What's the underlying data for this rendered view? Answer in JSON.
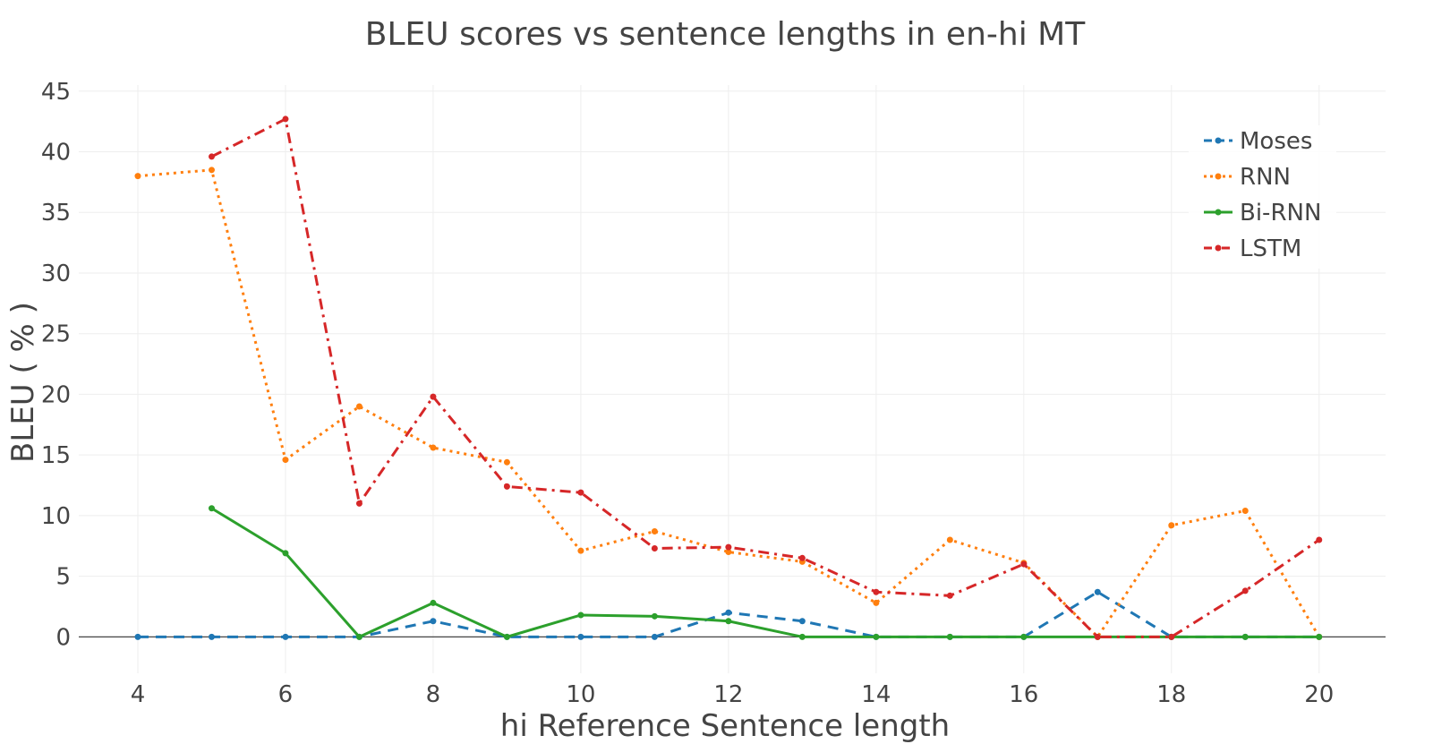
{
  "chart_data": {
    "type": "line",
    "title": "BLEU scores vs sentence lengths in en-hi MT",
    "xlabel": "hi Reference Sentence length",
    "ylabel": "BLEU ( % )",
    "xlim": [
      3.2,
      20.9
    ],
    "ylim": [
      -3,
      45.5
    ],
    "xticks": [
      4,
      6,
      8,
      10,
      12,
      14,
      16,
      18,
      20
    ],
    "yticks": [
      0,
      5,
      10,
      15,
      20,
      25,
      30,
      35,
      40,
      45
    ],
    "grid": true,
    "legend_position": "top-right",
    "series": [
      {
        "name": "Moses",
        "color": "#1f77b4",
        "dash": "dash",
        "points": [
          [
            4,
            0
          ],
          [
            5,
            0
          ],
          [
            6,
            0
          ],
          [
            7,
            0
          ],
          [
            8,
            1.3
          ],
          [
            9,
            0
          ],
          [
            10,
            0
          ],
          [
            11,
            0
          ],
          [
            12,
            2.0
          ],
          [
            13,
            1.3
          ],
          [
            14,
            0
          ],
          [
            15,
            0
          ],
          [
            16,
            0
          ],
          [
            17,
            3.7
          ],
          [
            18,
            0
          ],
          [
            19,
            0
          ],
          [
            20,
            0
          ]
        ]
      },
      {
        "name": "RNN",
        "color": "#ff7f0e",
        "dash": "dot",
        "points": [
          [
            4,
            38.0
          ],
          [
            5,
            38.5
          ],
          [
            6,
            14.6
          ],
          [
            7,
            19.0
          ],
          [
            8,
            15.6
          ],
          [
            9,
            14.4
          ],
          [
            10,
            7.1
          ],
          [
            11,
            8.7
          ],
          [
            12,
            7.0
          ],
          [
            13,
            6.2
          ],
          [
            14,
            2.8
          ],
          [
            15,
            8.0
          ],
          [
            16,
            6.1
          ],
          [
            17,
            0
          ],
          [
            18,
            9.2
          ],
          [
            19,
            10.4
          ],
          [
            20,
            0
          ]
        ]
      },
      {
        "name": "Bi-RNN",
        "color": "#2ca02c",
        "dash": "solid",
        "points": [
          [
            5,
            10.6
          ],
          [
            6,
            6.9
          ],
          [
            7,
            0
          ],
          [
            8,
            2.8
          ],
          [
            9,
            0
          ],
          [
            10,
            1.8
          ],
          [
            11,
            1.7
          ],
          [
            12,
            1.3
          ],
          [
            13,
            0
          ],
          [
            14,
            0
          ],
          [
            15,
            0
          ],
          [
            16,
            0
          ],
          [
            17,
            0
          ],
          [
            18,
            0
          ],
          [
            19,
            0
          ],
          [
            20,
            0
          ]
        ]
      },
      {
        "name": "LSTM",
        "color": "#d62728",
        "dash": "dashdot",
        "points": [
          [
            5,
            39.6
          ],
          [
            6,
            42.7
          ],
          [
            7,
            11.0
          ],
          [
            8,
            19.8
          ],
          [
            9,
            12.4
          ],
          [
            10,
            11.9
          ],
          [
            11,
            7.3
          ],
          [
            12,
            7.4
          ],
          [
            13,
            6.5
          ],
          [
            14,
            3.7
          ],
          [
            15,
            3.4
          ],
          [
            16,
            6.0
          ],
          [
            17,
            0
          ],
          [
            18,
            0
          ],
          [
            19,
            3.8
          ],
          [
            20,
            8.0
          ]
        ]
      }
    ]
  }
}
